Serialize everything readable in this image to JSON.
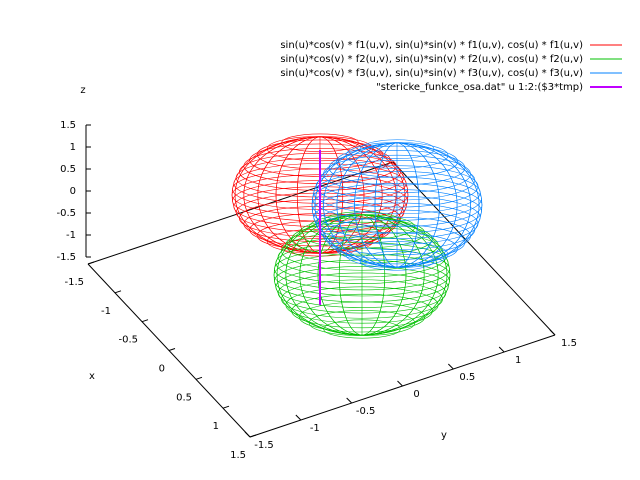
{
  "chart_data": {
    "type": "surface3d",
    "xlabel": "x",
    "ylabel": "y",
    "zlabel": "z",
    "xlim": [
      -1.5,
      1.5
    ],
    "xticks": [
      -1.5,
      -1,
      -0.5,
      0,
      0.5,
      1,
      1.5
    ],
    "ylim": [
      -1.5,
      1.5
    ],
    "yticks": [
      -1.5,
      -1,
      -0.5,
      0,
      0.5,
      1,
      1.5
    ],
    "zlim": [
      -1.5,
      1.5
    ],
    "zticks": [
      1.5,
      1,
      0.5,
      0,
      -0.5,
      -1,
      -1.5
    ],
    "legend": "top-right",
    "series": [
      {
        "name": "sin(u)*cos(v) * f1(u,v), sin(u)*sin(v) * f1(u,v), cos(u) * f1(u,v)",
        "color": "#ff0000"
      },
      {
        "name": "sin(u)*cos(v) * f2(u,v), sin(u)*sin(v) * f2(u,v), cos(u) * f2(u,v)",
        "color": "#00c000"
      },
      {
        "name": "sin(u)*cos(v) * f3(u,v), sin(u)*sin(v) * f3(u,v), cos(u) * f3(u,v)",
        "color": "#0080ff"
      },
      {
        "name": "\"stericke_funkce_osa.dat\" u 1:2:($3*tmp)",
        "color": "#c000ff"
      }
    ]
  }
}
